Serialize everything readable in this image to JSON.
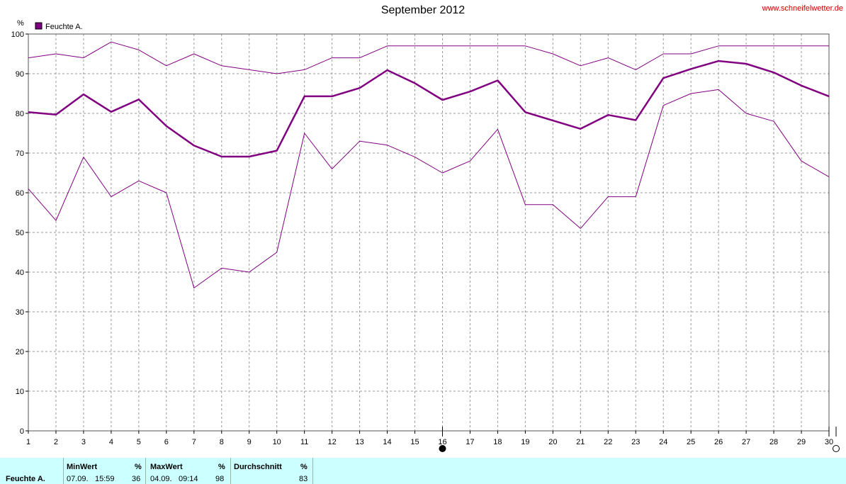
{
  "title": "September 2012",
  "site": "www.schneifelwetter.de",
  "chart_data": {
    "type": "line",
    "ylabel": "%",
    "ylim": [
      0,
      100
    ],
    "yticks": [
      0,
      10,
      20,
      30,
      40,
      50,
      60,
      70,
      80,
      90,
      100
    ],
    "x": [
      1,
      2,
      3,
      4,
      5,
      6,
      7,
      8,
      9,
      10,
      11,
      12,
      13,
      14,
      15,
      16,
      17,
      18,
      19,
      20,
      21,
      22,
      23,
      24,
      25,
      26,
      27,
      28,
      29,
      30
    ],
    "legend": "Feuchte A.",
    "grid": true,
    "series": [
      {
        "role": "max",
        "color": "#800080",
        "width": 1,
        "values": [
          94,
          95,
          94,
          98,
          96,
          92,
          95,
          92,
          91,
          90,
          91,
          94,
          94,
          97,
          97,
          97,
          97,
          97,
          97,
          95,
          92,
          94,
          91,
          95,
          95,
          97,
          97,
          97,
          97,
          97
        ]
      },
      {
        "role": "avg",
        "color": "#800080",
        "width": 2.5,
        "values": [
          80.3,
          79.7,
          84.8,
          80.4,
          83.5,
          76.8,
          71.9,
          69.1,
          69.1,
          70.6,
          84.3,
          84.3,
          86.4,
          90.9,
          87.6,
          83.4,
          85.5,
          88.3,
          80.3,
          78.2,
          76.1,
          79.6,
          78.3,
          88.9,
          91.2,
          93.2,
          92.5,
          90.3,
          87.0,
          84.3
        ]
      },
      {
        "role": "min",
        "color": "#800080",
        "width": 1,
        "values": [
          61,
          53,
          69,
          59,
          63,
          60,
          36,
          41,
          40,
          45,
          75,
          66,
          73,
          72,
          69,
          65,
          68,
          76,
          57,
          57,
          51,
          59,
          59,
          82,
          85,
          86,
          80,
          78,
          68,
          64
        ]
      }
    ],
    "markers": [
      {
        "x": 16,
        "symbol": "full-moon"
      },
      {
        "x": 30,
        "symbol": "new-moon"
      }
    ]
  },
  "stats": {
    "series_label": "Feuchte A.",
    "min": {
      "label": "MinWert",
      "unit": "%",
      "date": "07.09.",
      "time": "15:59",
      "value": "36"
    },
    "max": {
      "label": "MaxWert",
      "unit": "%",
      "date": "04.09.",
      "time": "09:14",
      "value": "98"
    },
    "avg": {
      "label": "Durchschnitt",
      "unit": "%",
      "value": "83"
    }
  }
}
